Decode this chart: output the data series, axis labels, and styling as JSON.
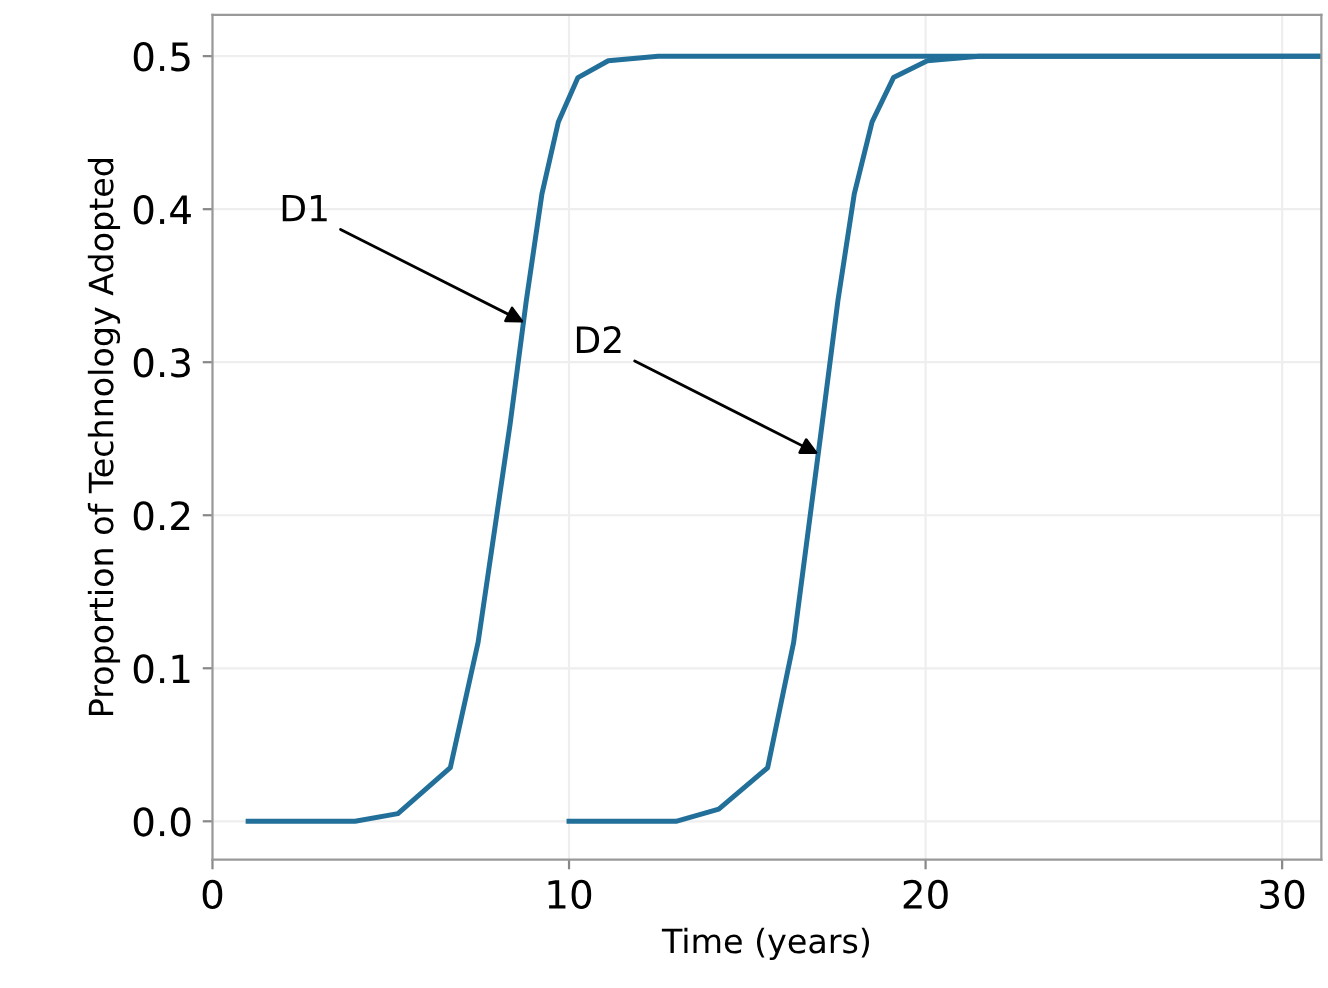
{
  "chart_data": {
    "type": "line",
    "xlabel": "Time (years)",
    "ylabel": "Proportion of Technology Adopted",
    "xlim": [
      0,
      31.1
    ],
    "ylim": [
      -0.025,
      0.527
    ],
    "xticks": [
      0,
      10,
      20,
      30
    ],
    "yticks": [
      {
        "value": 0,
        "label": "0.0"
      },
      0.1,
      0.2,
      0.3,
      0.4,
      0.5
    ],
    "grid": true,
    "marker": "none",
    "line_style": "solid",
    "series": [
      {
        "color": "#22709a",
        "x": [
          1,
          4,
          5.2,
          6.67,
          7.45,
          8.35,
          8.8,
          9.24,
          9.7,
          10.25,
          11.1,
          12.5,
          31.1
        ],
        "values": [
          0,
          0,
          0.005,
          0.035,
          0.117,
          0.26,
          0.34,
          0.41,
          0.457,
          0.486,
          0.497,
          0.5,
          0.5
        ]
      },
      {
        "color": "#22709a",
        "x": [
          10,
          13,
          14.2,
          15.57,
          16.3,
          17.1,
          17.54,
          18,
          18.5,
          19.1,
          20.05,
          21.5,
          31.1
        ],
        "values": [
          0,
          0,
          0.008,
          0.035,
          0.117,
          0.26,
          0.34,
          0.41,
          0.457,
          0.486,
          0.497,
          0.5,
          0.5
        ]
      }
    ],
    "annotations": [
      {
        "text": "D1",
        "x": 8.75,
        "y": 0.326
      },
      {
        "text": "D2",
        "x": 17.0,
        "y": 0.24
      }
    ]
  }
}
